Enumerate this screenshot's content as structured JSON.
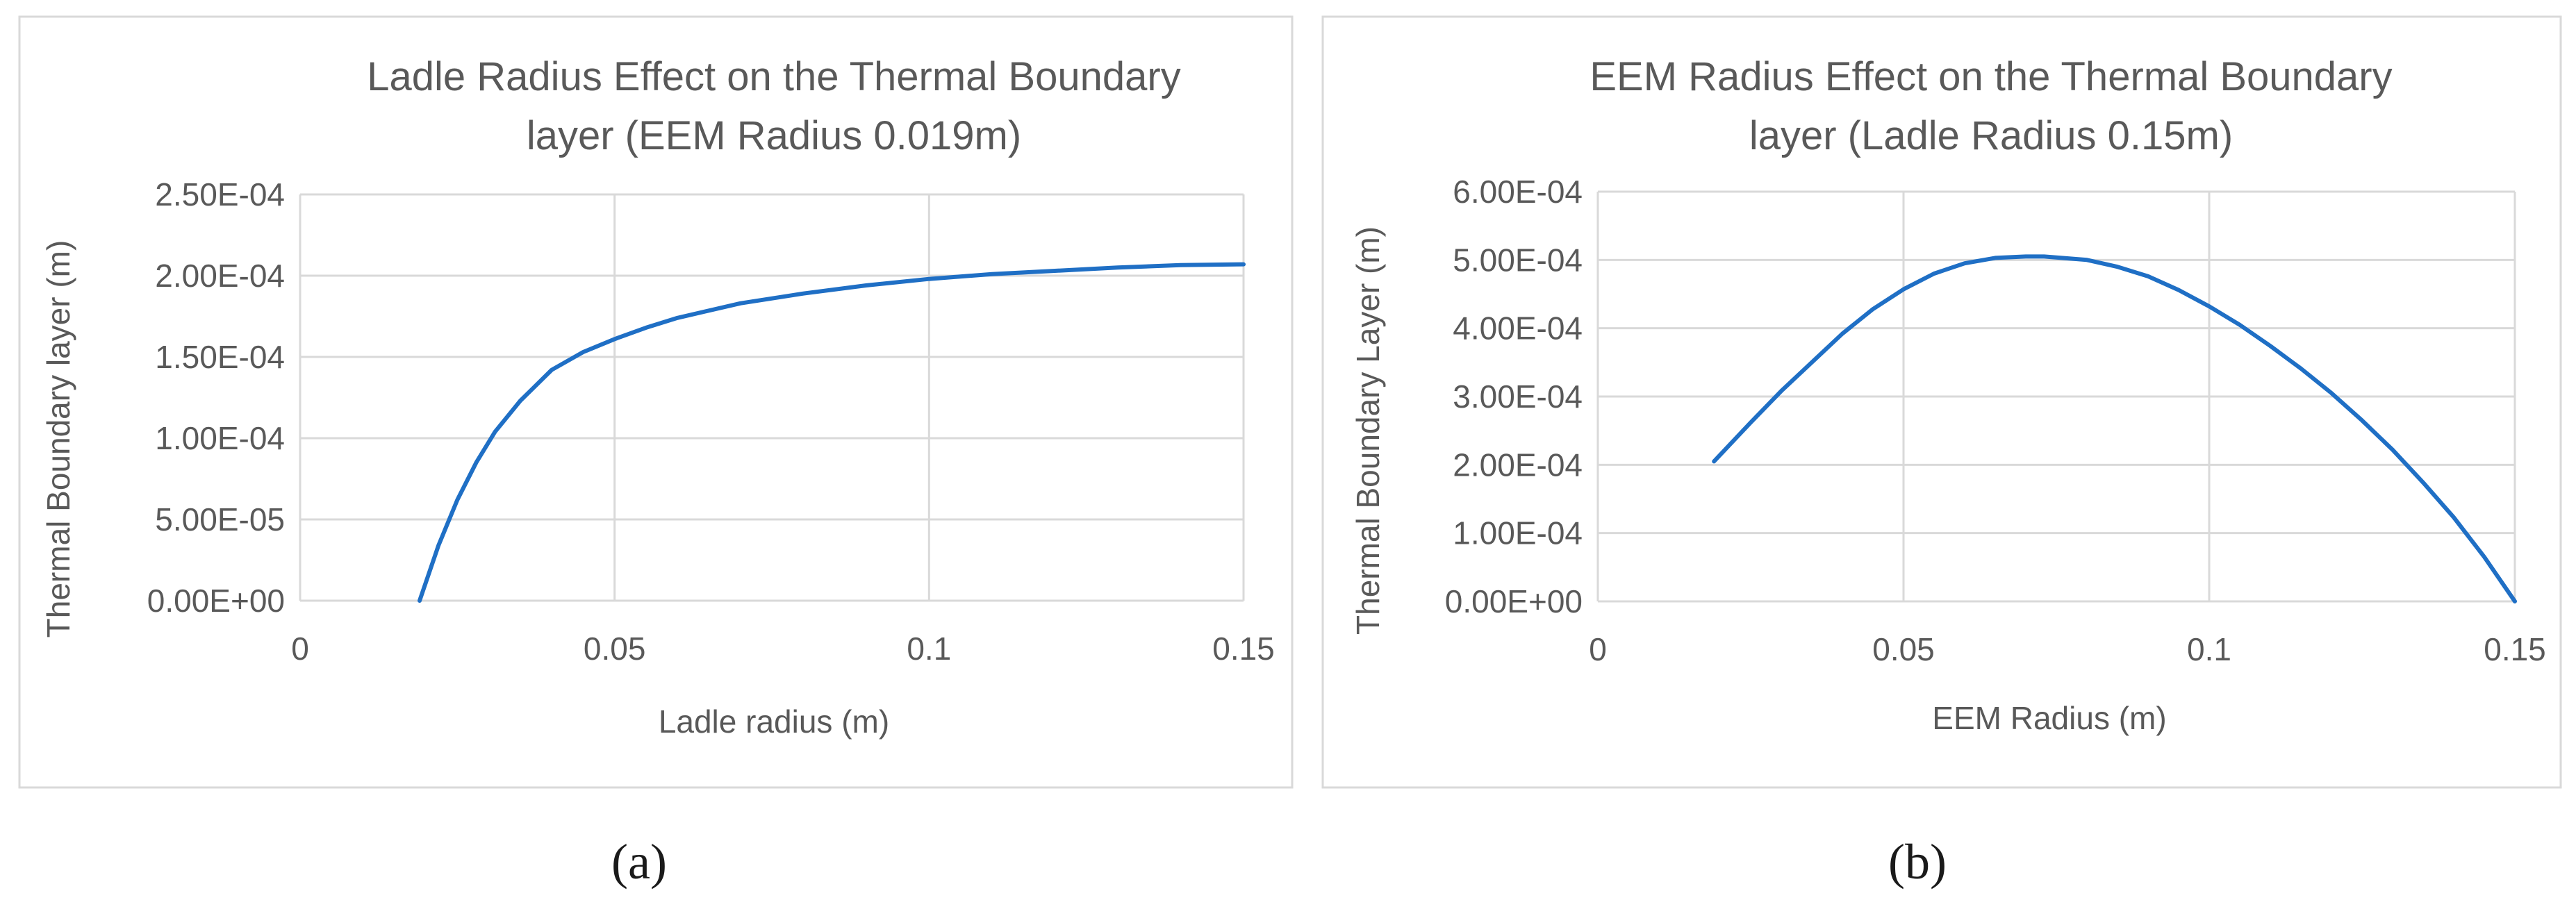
{
  "panel_labels": [
    "(a)",
    "(b)"
  ],
  "chart_data": [
    {
      "type": "line",
      "title": "Ladle Radius Effect on the Thermal Boundary layer (EEM Radius 0.019m)",
      "title_lines": [
        "Ladle Radius Effect on the Thermal Boundary",
        "layer (EEM Radius 0.019m)"
      ],
      "xlabel": "Ladle radius (m)",
      "ylabel": "Thermal Boundary layer  (m)",
      "xlim": [
        0,
        0.15
      ],
      "ylim": [
        0,
        0.00025
      ],
      "x_ticks": [
        0,
        0.05,
        0.1,
        0.15
      ],
      "x_tick_labels": [
        "0",
        "0.05",
        "0.1",
        "0.15"
      ],
      "y_ticks": [
        0,
        5e-05,
        0.0001,
        0.00015,
        0.0002,
        0.00025
      ],
      "y_tick_labels": [
        "0.00E+00",
        "5.00E-05",
        "1.00E-04",
        "1.50E-04",
        "2.00E-04",
        "2.50E-04"
      ],
      "grid": true,
      "series": [
        {
          "color": "#1f6fc5",
          "x": [
            0.019,
            0.022,
            0.025,
            0.028,
            0.031,
            0.035,
            0.04,
            0.045,
            0.05,
            0.055,
            0.06,
            0.07,
            0.08,
            0.09,
            0.1,
            0.11,
            0.12,
            0.13,
            0.14,
            0.15
          ],
          "y": [
            0.0,
            3.4e-05,
            6.2e-05,
            8.5e-05,
            0.000104,
            0.000123,
            0.000142,
            0.000153,
            0.000161,
            0.000168,
            0.000174,
            0.000183,
            0.000189,
            0.000194,
            0.000198,
            0.000201,
            0.000203,
            0.000205,
            0.0002065,
            0.000207
          ]
        }
      ]
    },
    {
      "type": "line",
      "title": "EEM Radius Effect on the Thermal Boundary layer (Ladle Radius 0.15m)",
      "title_lines": [
        "EEM Radius Effect on the Thermal Boundary",
        "layer (Ladle Radius 0.15m)"
      ],
      "xlabel": "EEM Radius (m)",
      "ylabel": "Thermal Boundary Layer (m)",
      "xlim": [
        0,
        0.15
      ],
      "ylim": [
        0,
        0.0006
      ],
      "x_ticks": [
        0,
        0.05,
        0.1,
        0.15
      ],
      "x_tick_labels": [
        "0",
        "0.05",
        "0.1",
        "0.15"
      ],
      "y_ticks": [
        0,
        0.0001,
        0.0002,
        0.0003,
        0.0004,
        0.0005,
        0.0006
      ],
      "y_tick_labels": [
        "0.00E+00",
        "1.00E-04",
        "2.00E-04",
        "3.00E-04",
        "4.00E-04",
        "5.00E-04",
        "6.00E-04"
      ],
      "grid": true,
      "series": [
        {
          "color": "#1f6fc5",
          "x": [
            0.019,
            0.025,
            0.03,
            0.035,
            0.04,
            0.045,
            0.05,
            0.055,
            0.06,
            0.065,
            0.07,
            0.073,
            0.08,
            0.085,
            0.09,
            0.095,
            0.1,
            0.105,
            0.11,
            0.115,
            0.12,
            0.125,
            0.13,
            0.135,
            0.14,
            0.145,
            0.15
          ],
          "y": [
            0.000205,
            0.000262,
            0.000308,
            0.00035,
            0.000392,
            0.000428,
            0.000457,
            0.00048,
            0.000495,
            0.000503,
            0.000505,
            0.000505,
            0.0005,
            0.00049,
            0.000476,
            0.000456,
            0.000432,
            0.000405,
            0.000374,
            0.000341,
            0.000305,
            0.000265,
            0.000222,
            0.000174,
            0.000123,
            6.5e-05,
            0.0
          ]
        }
      ]
    }
  ]
}
